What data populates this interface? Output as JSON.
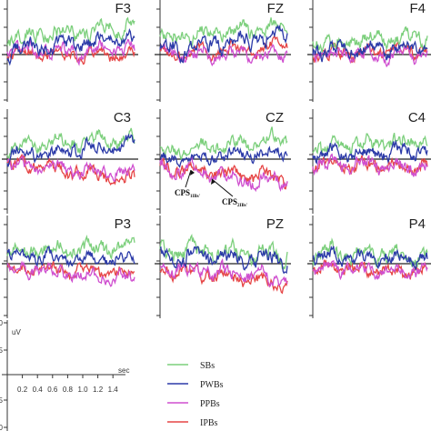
{
  "chart_data": {
    "type": "line",
    "electrodes": [
      "F3",
      "FZ",
      "F4",
      "C3",
      "CZ",
      "C4",
      "P3",
      "PZ",
      "P4"
    ],
    "legend": [
      "SBs",
      "PWBs",
      "PPBs",
      "IPBs"
    ],
    "colors": {
      "SBs": "#7ccf7c",
      "PWBs": "#2b3aa8",
      "PPBs": "#cf4fcf",
      "IPBs": "#e64545"
    },
    "annotations": [
      {
        "panel": "CZ",
        "text": "CPS",
        "sub": "1IBs'"
      },
      {
        "panel": "CZ",
        "text": "CPS",
        "sub": "2IBs'"
      }
    ],
    "scale": {
      "unit_label": "uV",
      "x_unit_label": "sec",
      "x_ticks": [
        "0.2",
        "0.4",
        "0.6",
        "0.8",
        "1.0",
        "1.2",
        "1.4"
      ],
      "y_ticks": [
        "0",
        "5",
        "10"
      ],
      "x_range": [
        0,
        1.5
      ],
      "y_range": [
        -10,
        10
      ]
    },
    "panels": [
      {
        "name": "F3",
        "series": [
          {
            "label": "SBs",
            "start": 4,
            "end": 7,
            "amp": 2.2
          },
          {
            "label": "PWBs",
            "start": 1,
            "end": 4,
            "amp": 2.0
          },
          {
            "label": "PPBs",
            "start": 1,
            "end": 1,
            "amp": 1.8
          },
          {
            "label": "IPBs",
            "start": 0,
            "end": 0,
            "amp": 1.6
          }
        ]
      },
      {
        "name": "FZ",
        "series": [
          {
            "label": "SBs",
            "start": 4,
            "end": 7,
            "amp": 2.0
          },
          {
            "label": "PWBs",
            "start": 1,
            "end": 5,
            "amp": 2.2
          },
          {
            "label": "PPBs",
            "start": 0,
            "end": 0,
            "amp": 1.8
          },
          {
            "label": "IPBs",
            "start": 0,
            "end": 2,
            "amp": 1.6
          }
        ]
      },
      {
        "name": "F4",
        "series": [
          {
            "label": "SBs",
            "start": 3,
            "end": 5,
            "amp": 2.0
          },
          {
            "label": "PWBs",
            "start": 1,
            "end": 2,
            "amp": 1.8
          },
          {
            "label": "PPBs",
            "start": 0,
            "end": 0,
            "amp": 1.6
          },
          {
            "label": "IPBs",
            "start": 0,
            "end": 1,
            "amp": 1.6
          }
        ]
      },
      {
        "name": "C3",
        "series": [
          {
            "label": "SBs",
            "start": 3,
            "end": 5,
            "amp": 2.0
          },
          {
            "label": "PWBs",
            "start": 1,
            "end": 4,
            "amp": 2.0
          },
          {
            "label": "PPBs",
            "start": -1,
            "end": -4,
            "amp": 1.8
          },
          {
            "label": "IPBs",
            "start": -1,
            "end": -5,
            "amp": 1.8
          }
        ]
      },
      {
        "name": "CZ",
        "series": [
          {
            "label": "SBs",
            "start": 2,
            "end": 5,
            "amp": 2.0
          },
          {
            "label": "PWBs",
            "start": 0,
            "end": 2,
            "amp": 1.8
          },
          {
            "label": "PPBs",
            "start": -2,
            "end": -6,
            "amp": 2.0
          },
          {
            "label": "IPBs",
            "start": -2,
            "end": -5,
            "amp": 1.8
          }
        ]
      },
      {
        "name": "C4",
        "series": [
          {
            "label": "SBs",
            "start": 3,
            "end": 5,
            "amp": 2.0
          },
          {
            "label": "PWBs",
            "start": 1,
            "end": 2,
            "amp": 1.8
          },
          {
            "label": "PPBs",
            "start": -1,
            "end": -2,
            "amp": 1.8
          },
          {
            "label": "IPBs",
            "start": -1,
            "end": -2,
            "amp": 1.6
          }
        ]
      },
      {
        "name": "P3",
        "series": [
          {
            "label": "SBs",
            "start": 3,
            "end": 4,
            "amp": 2.0
          },
          {
            "label": "PWBs",
            "start": 2,
            "end": 1,
            "amp": 1.8
          },
          {
            "label": "PPBs",
            "start": -1,
            "end": -4,
            "amp": 1.8
          },
          {
            "label": "IPBs",
            "start": -1,
            "end": -2,
            "amp": 1.6
          }
        ]
      },
      {
        "name": "PZ",
        "series": [
          {
            "label": "SBs",
            "start": 3,
            "end": 2,
            "amp": 2.4
          },
          {
            "label": "PWBs",
            "start": 2,
            "end": 1,
            "amp": 2.2
          },
          {
            "label": "PPBs",
            "start": -1,
            "end": -4,
            "amp": 2.0
          },
          {
            "label": "IPBs",
            "start": -1,
            "end": -5,
            "amp": 1.8
          }
        ]
      },
      {
        "name": "P4",
        "series": [
          {
            "label": "SBs",
            "start": 3,
            "end": 2,
            "amp": 2.0
          },
          {
            "label": "PWBs",
            "start": 2,
            "end": 1,
            "amp": 1.8
          },
          {
            "label": "PPBs",
            "start": -1,
            "end": -2,
            "amp": 1.6
          },
          {
            "label": "IPBs",
            "start": -1,
            "end": -2,
            "amp": 1.6
          }
        ]
      }
    ]
  }
}
